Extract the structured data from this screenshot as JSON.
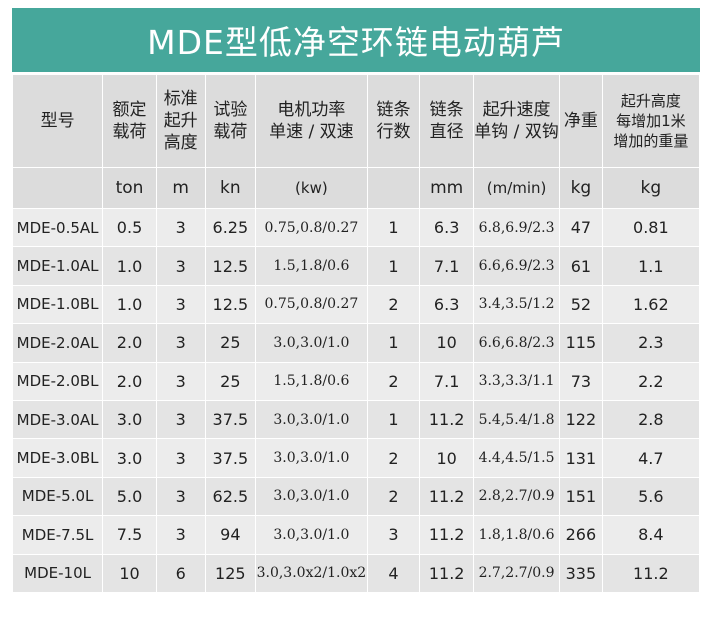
{
  "title": "MDE型低净空环链电动葫芦",
  "headers": [
    [
      "型号"
    ],
    [
      "额定",
      "载荷"
    ],
    [
      "标准",
      "起升",
      "高度"
    ],
    [
      "试验",
      "载荷"
    ],
    [
      "电机功率",
      "单速 / 双速"
    ],
    [
      "链条",
      "行数"
    ],
    [
      "链条",
      "直径"
    ],
    [
      "起升速度",
      "单钩 / 双钩"
    ],
    [
      "净重"
    ],
    [
      "起升高度",
      "每增加1米",
      "增加的重量"
    ]
  ],
  "units": [
    "",
    "ton",
    "m",
    "kn",
    "(kw)",
    "",
    "mm",
    "(m/min)",
    "kg",
    "kg"
  ],
  "rows": [
    [
      "MDE-0.5AL",
      "0.5",
      "3",
      "6.25",
      "0.75,0.8/0.27",
      "1",
      "6.3",
      "6.8,6.9/2.3",
      "47",
      "0.81"
    ],
    [
      "MDE-1.0AL",
      "1.0",
      "3",
      "12.5",
      "1.5,1.8/0.6",
      "1",
      "7.1",
      "6.6,6.9/2.3",
      "61",
      "1.1"
    ],
    [
      "MDE-1.0BL",
      "1.0",
      "3",
      "12.5",
      "0.75,0.8/0.27",
      "2",
      "6.3",
      "3.4,3.5/1.2",
      "52",
      "1.62"
    ],
    [
      "MDE-2.0AL",
      "2.0",
      "3",
      "25",
      "3.0,3.0/1.0",
      "1",
      "10",
      "6.6,6.8/2.3",
      "115",
      "2.3"
    ],
    [
      "MDE-2.0BL",
      "2.0",
      "3",
      "25",
      "1.5,1.8/0.6",
      "2",
      "7.1",
      "3.3,3.3/1.1",
      "73",
      "2.2"
    ],
    [
      "MDE-3.0AL",
      "3.0",
      "3",
      "37.5",
      "3.0,3.0/1.0",
      "1",
      "11.2",
      "5.4,5.4/1.8",
      "122",
      "2.8"
    ],
    [
      "MDE-3.0BL",
      "3.0",
      "3",
      "37.5",
      "3.0,3.0/1.0",
      "2",
      "10",
      "4.4,4.5/1.5",
      "131",
      "4.7"
    ],
    [
      "MDE-5.0L",
      "5.0",
      "3",
      "62.5",
      "3.0,3.0/1.0",
      "2",
      "11.2",
      "2.8,2.7/0.9",
      "151",
      "5.6"
    ],
    [
      "MDE-7.5L",
      "7.5",
      "3",
      "94",
      "3.0,3.0/1.0",
      "3",
      "11.2",
      "1.8,1.8/0.6",
      "266",
      "8.4"
    ],
    [
      "MDE-10L",
      "10",
      "6",
      "125",
      "3.0,3.0x2/1.0x2",
      "4",
      "11.2",
      "2.7,2.7/0.9",
      "335",
      "11.2"
    ]
  ],
  "colors": {
    "title_bg": "#46a79b",
    "header_bg": "#dcdcdc",
    "row_bg_a": "#ececec",
    "row_bg_b": "#e4e4e4"
  }
}
